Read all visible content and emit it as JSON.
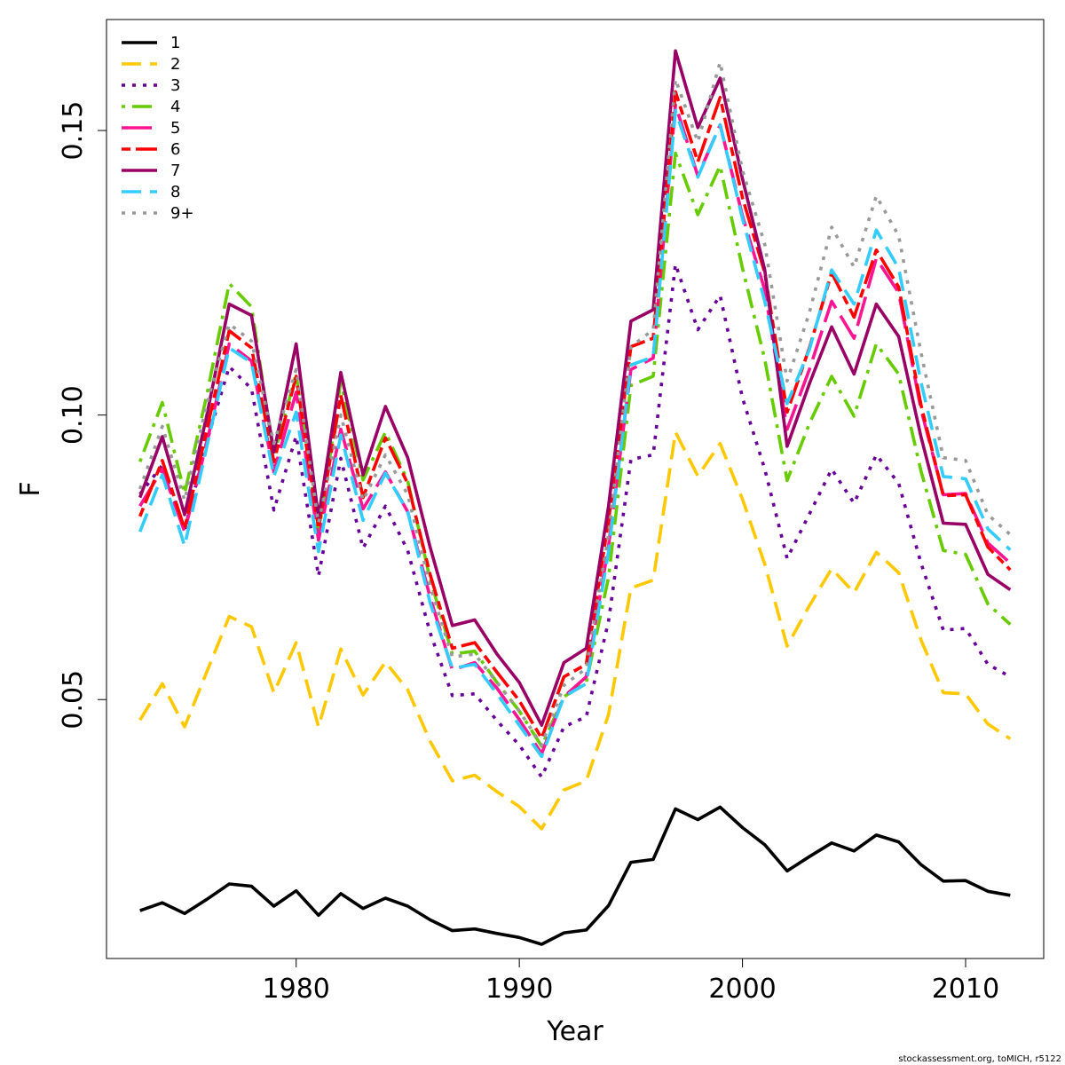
{
  "footer": {
    "credit": "stockassessment.org, toMICH, r5122"
  },
  "chart_data": {
    "type": "line",
    "title": "",
    "xlabel": "Year",
    "ylabel": "F",
    "xlim": [
      1971.5,
      2013.5
    ],
    "ylim": [
      0.0045,
      0.1695
    ],
    "grid": false,
    "legend_position": "top-left",
    "x_ticks": [
      1980,
      1990,
      2000,
      2010
    ],
    "x_tick_labels": [
      "1980",
      "1990",
      "2000",
      "2010"
    ],
    "y_ticks": [
      0.05,
      0.1,
      0.15
    ],
    "y_tick_labels": [
      "0.05",
      "0.10",
      "0.15"
    ],
    "x": [
      1973,
      1974,
      1975,
      1976,
      1977,
      1978,
      1979,
      1980,
      1981,
      1982,
      1983,
      1984,
      1985,
      1986,
      1987,
      1988,
      1989,
      1990,
      1991,
      1992,
      1993,
      1994,
      1995,
      1996,
      1997,
      1998,
      1999,
      2000,
      2001,
      2002,
      2003,
      2004,
      2005,
      2006,
      2007,
      2008,
      2009,
      2010,
      2011,
      2012
    ],
    "series": [
      {
        "name": "1",
        "color": "#000000",
        "dash": "solid",
        "values": [
          0.0129,
          0.0143,
          0.0124,
          0.0149,
          0.0176,
          0.0172,
          0.0137,
          0.0164,
          0.0121,
          0.0159,
          0.0133,
          0.0151,
          0.0137,
          0.0113,
          0.0094,
          0.0097,
          0.0089,
          0.0082,
          0.007,
          0.009,
          0.0095,
          0.0138,
          0.0214,
          0.0219,
          0.0308,
          0.0289,
          0.0311,
          0.0275,
          0.0245,
          0.0199,
          0.0224,
          0.0248,
          0.0234,
          0.0262,
          0.025,
          0.021,
          0.0181,
          0.0182,
          0.0163,
          0.0156
        ]
      },
      {
        "name": "2",
        "color": "#FFC800",
        "dash": "dashed",
        "values": [
          0.0464,
          0.0528,
          0.0452,
          0.0549,
          0.0646,
          0.0628,
          0.0512,
          0.06,
          0.0452,
          0.0589,
          0.0508,
          0.0566,
          0.0517,
          0.0427,
          0.0357,
          0.0367,
          0.0338,
          0.0312,
          0.0273,
          0.0341,
          0.0357,
          0.0474,
          0.0696,
          0.071,
          0.097,
          0.0893,
          0.095,
          0.0852,
          0.0738,
          0.0594,
          0.0665,
          0.073,
          0.0688,
          0.0759,
          0.0723,
          0.0605,
          0.0512,
          0.051,
          0.0457,
          0.0431
        ]
      },
      {
        "name": "3",
        "color": "#660099",
        "dash": "dotted",
        "values": [
          0.0861,
          0.0912,
          0.0798,
          0.0954,
          0.1085,
          0.1046,
          0.0833,
          0.0963,
          0.0717,
          0.0924,
          0.0766,
          0.084,
          0.0762,
          0.0618,
          0.0507,
          0.051,
          0.0463,
          0.042,
          0.0364,
          0.0452,
          0.047,
          0.0638,
          0.0922,
          0.093,
          0.1265,
          0.115,
          0.121,
          0.103,
          0.0905,
          0.0748,
          0.0826,
          0.0905,
          0.0845,
          0.093,
          0.088,
          0.074,
          0.0622,
          0.0625,
          0.0562,
          0.054
        ]
      },
      {
        "name": "4",
        "color": "#66CC00",
        "dash": "dashdot",
        "values": [
          0.0918,
          0.1022,
          0.0862,
          0.1036,
          0.1231,
          0.119,
          0.0927,
          0.1073,
          0.079,
          0.1059,
          0.0886,
          0.097,
          0.0884,
          0.0712,
          0.058,
          0.0585,
          0.053,
          0.048,
          0.0418,
          0.0505,
          0.053,
          0.0715,
          0.1052,
          0.1068,
          0.146,
          0.1352,
          0.1438,
          0.1258,
          0.1098,
          0.0885,
          0.0985,
          0.1068,
          0.0998,
          0.1125,
          0.1072,
          0.0902,
          0.0762,
          0.0755,
          0.0668,
          0.0632
        ]
      },
      {
        "name": "5",
        "color": "#FF1493",
        "dash": "longdash",
        "values": [
          0.084,
          0.0905,
          0.0795,
          0.0952,
          0.1125,
          0.1095,
          0.09,
          0.104,
          0.078,
          0.0975,
          0.0835,
          0.09,
          0.083,
          0.068,
          0.0552,
          0.0565,
          0.052,
          0.0465,
          0.0405,
          0.0505,
          0.054,
          0.077,
          0.108,
          0.11,
          0.1545,
          0.142,
          0.151,
          0.135,
          0.122,
          0.0975,
          0.108,
          0.12,
          0.1135,
          0.1275,
          0.1215,
          0.101,
          0.086,
          0.0862,
          0.0775,
          0.074
        ]
      },
      {
        "name": "6",
        "color": "#FF0000",
        "dash": "twodash",
        "values": [
          0.0822,
          0.092,
          0.08,
          0.0975,
          0.1148,
          0.1118,
          0.0918,
          0.1068,
          0.08,
          0.1035,
          0.0855,
          0.096,
          0.088,
          0.072,
          0.059,
          0.06,
          0.0548,
          0.0498,
          0.0432,
          0.054,
          0.0562,
          0.0815,
          0.112,
          0.1135,
          0.1568,
          0.1445,
          0.1558,
          0.1382,
          0.125,
          0.1005,
          0.1118,
          0.125,
          0.1172,
          0.129,
          0.1225,
          0.1018,
          0.0858,
          0.086,
          0.0768,
          0.0728
        ]
      },
      {
        "name": "7",
        "color": "#990066",
        "dash": "solid",
        "values": [
          0.0855,
          0.0962,
          0.0825,
          0.1,
          0.1195,
          0.1175,
          0.0935,
          0.1125,
          0.082,
          0.1075,
          0.0895,
          0.1015,
          0.0925,
          0.0768,
          0.063,
          0.064,
          0.058,
          0.053,
          0.0455,
          0.0565,
          0.059,
          0.084,
          0.1165,
          0.1185,
          0.164,
          0.1505,
          0.1592,
          0.1415,
          0.1255,
          0.0945,
          0.1055,
          0.1155,
          0.1072,
          0.1195,
          0.1138,
          0.0962,
          0.081,
          0.0808,
          0.072,
          0.0693
        ]
      },
      {
        "name": "8",
        "color": "#33CCFF",
        "dash": "dashed",
        "values": [
          0.0795,
          0.0895,
          0.077,
          0.0945,
          0.1118,
          0.1092,
          0.0892,
          0.1005,
          0.076,
          0.0965,
          0.0815,
          0.0898,
          0.083,
          0.067,
          0.0555,
          0.0562,
          0.051,
          0.0455,
          0.04,
          0.0505,
          0.0528,
          0.076,
          0.1088,
          0.1102,
          0.1535,
          0.1418,
          0.151,
          0.1345,
          0.12,
          0.102,
          0.1115,
          0.1255,
          0.1195,
          0.1325,
          0.1258,
          0.1058,
          0.0892,
          0.0888,
          0.08,
          0.0763
        ]
      },
      {
        "name": "9+",
        "color": "#999999",
        "dash": "dotted",
        "values": [
          0.087,
          0.098,
          0.085,
          0.102,
          0.116,
          0.113,
          0.095,
          0.108,
          0.081,
          0.1,
          0.085,
          0.093,
          0.086,
          0.07,
          0.0575,
          0.058,
          0.053,
          0.048,
          0.042,
          0.0525,
          0.0555,
          0.079,
          0.112,
          0.115,
          0.159,
          0.148,
          0.162,
          0.143,
          0.13,
          0.106,
          0.118,
          0.133,
          0.126,
          0.1385,
          0.1315,
          0.111,
          0.0925,
          0.092,
          0.0825,
          0.079
        ]
      }
    ]
  }
}
